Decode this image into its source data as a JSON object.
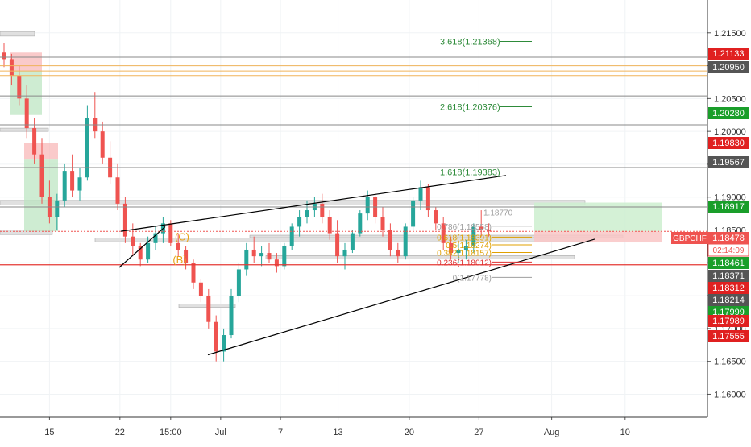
{
  "symbol": "GBPCHF",
  "price": "1.18478",
  "countdown": "02:14:09",
  "chart_data": {
    "type": "candlestick",
    "symbol": "GBPCHF",
    "ylim": [
      1.1565,
      1.22
    ],
    "y_ticks": [
      "1.21500",
      "1.21000",
      "1.20500",
      "1.20000",
      "1.19500",
      "1.19000",
      "1.18500",
      "1.18000",
      "1.17500",
      "1.17000",
      "1.16500",
      "1.16000"
    ],
    "x_ticks": [
      {
        "label": "15",
        "t": 0.6
      },
      {
        "label": "22",
        "t": 1.53
      },
      {
        "label": "15:00",
        "t": 2.2
      },
      {
        "label": "Jul",
        "t": 2.86
      },
      {
        "label": "7",
        "t": 3.65
      },
      {
        "label": "13",
        "t": 4.41
      },
      {
        "label": "20",
        "t": 5.35
      },
      {
        "label": "27",
        "t": 6.27
      },
      {
        "label": "Aug",
        "t": 7.23
      },
      {
        "label": "10",
        "t": 8.2
      }
    ],
    "price_tags": [
      {
        "label": "1.21133",
        "color": "#e02020"
      },
      {
        "label": "1.20950",
        "color": "#555555"
      },
      {
        "label": "1.20280",
        "color": "#1a9e2a"
      },
      {
        "label": "1.19830",
        "color": "#e02020"
      },
      {
        "label": "1.19567",
        "color": "#555555"
      },
      {
        "label": "1.18917",
        "color": "#1a9e2a"
      },
      {
        "label": "1.18461",
        "color": "#1a9e2a"
      },
      {
        "label": "1.18371",
        "color": "#555555"
      },
      {
        "label": "1.18312",
        "color": "#e02020"
      },
      {
        "label": "1.18214",
        "color": "#555555"
      },
      {
        "label": "1.17999",
        "color": "#1a9e2a"
      },
      {
        "label": "1.17989",
        "color": "#e02020"
      },
      {
        "label": "1.17555",
        "color": "#e02020"
      }
    ],
    "fib_extensions": [
      {
        "label": "3.618(1.21368)",
        "value": 1.21368
      },
      {
        "label": "2.618(1.20376)",
        "value": 1.20376
      },
      {
        "label": "1.618(1.19383)",
        "value": 1.19383
      }
    ],
    "fib_retracements": [
      {
        "label": "0.786(1.18558)",
        "value": 1.18558,
        "color": "#9e9e9e"
      },
      {
        "label": "0.618(1.18391)",
        "value": 1.18391,
        "color": "#e0a000"
      },
      {
        "label": "0.5(1.18274)",
        "value": 1.18274,
        "color": "#e0a000"
      },
      {
        "label": "0.382(1.18157)",
        "value": 1.18157,
        "color": "#e0a000"
      },
      {
        "label": "0.236(1.18012)",
        "value": 1.18012,
        "color": "#e03030"
      },
      {
        "label": "0(1.17778)",
        "value": 1.17778,
        "color": "#9e9e9e"
      }
    ],
    "extra_labels": [
      "1.18770"
    ],
    "wave_labels": [
      "(C)",
      "(B)"
    ],
    "candles": [
      [
        0.0,
        1.212,
        1.2135,
        1.2098,
        1.211
      ],
      [
        0.1,
        1.211,
        1.2118,
        1.207,
        1.2085
      ],
      [
        0.2,
        1.2085,
        1.21,
        1.204,
        1.205
      ],
      [
        0.3,
        1.205,
        1.207,
        1.199,
        1.2005
      ],
      [
        0.4,
        1.2005,
        1.202,
        1.195,
        1.1965
      ],
      [
        0.5,
        1.1965,
        1.199,
        1.189,
        1.19
      ],
      [
        0.6,
        1.19,
        1.1925,
        1.186,
        1.187
      ],
      [
        0.7,
        1.187,
        1.1905,
        1.185,
        1.1895
      ],
      [
        0.8,
        1.1895,
        1.195,
        1.1885,
        1.194
      ],
      [
        0.9,
        1.194,
        1.1965,
        1.19,
        1.191
      ],
      [
        1.0,
        1.191,
        1.1945,
        1.1895,
        1.193
      ],
      [
        1.1,
        1.193,
        1.204,
        1.1925,
        1.202
      ],
      [
        1.2,
        1.202,
        1.206,
        1.199,
        1.2
      ],
      [
        1.3,
        1.2,
        1.2015,
        1.195,
        1.196
      ],
      [
        1.4,
        1.196,
        1.1985,
        1.192,
        1.193
      ],
      [
        1.5,
        1.193,
        1.195,
        1.188,
        1.189
      ],
      [
        1.6,
        1.189,
        1.19,
        1.183,
        1.184
      ],
      [
        1.7,
        1.184,
        1.186,
        1.181,
        1.1825
      ],
      [
        1.8,
        1.1825,
        1.183,
        1.1795,
        1.1805
      ],
      [
        1.9,
        1.1805,
        1.184,
        1.18,
        1.183
      ],
      [
        2.0,
        1.183,
        1.1855,
        1.182,
        1.1845
      ],
      [
        2.1,
        1.1845,
        1.187,
        1.183,
        1.186
      ],
      [
        2.2,
        1.186,
        1.1865,
        1.1825,
        1.183
      ],
      [
        2.3,
        1.183,
        1.1845,
        1.181,
        1.182
      ],
      [
        2.4,
        1.182,
        1.1825,
        1.179,
        1.18
      ],
      [
        2.5,
        1.18,
        1.1805,
        1.176,
        1.177
      ],
      [
        2.6,
        1.177,
        1.1775,
        1.174,
        1.175
      ],
      [
        2.7,
        1.175,
        1.176,
        1.17,
        1.171
      ],
      [
        2.8,
        1.171,
        1.172,
        1.165,
        1.1665
      ],
      [
        2.9,
        1.1665,
        1.17,
        1.165,
        1.169
      ],
      [
        3.0,
        1.169,
        1.176,
        1.1685,
        1.175
      ],
      [
        3.1,
        1.175,
        1.18,
        1.174,
        1.179
      ],
      [
        3.2,
        1.179,
        1.183,
        1.178,
        1.182
      ],
      [
        3.3,
        1.182,
        1.184,
        1.18,
        1.181
      ],
      [
        3.4,
        1.181,
        1.1825,
        1.1795,
        1.1815
      ],
      [
        3.5,
        1.1815,
        1.183,
        1.18,
        1.1805
      ],
      [
        3.6,
        1.1805,
        1.1815,
        1.1785,
        1.1795
      ],
      [
        3.7,
        1.1795,
        1.183,
        1.179,
        1.1825
      ],
      [
        3.8,
        1.1825,
        1.186,
        1.182,
        1.1855
      ],
      [
        3.9,
        1.1855,
        1.188,
        1.184,
        1.187
      ],
      [
        4.0,
        1.187,
        1.1895,
        1.186,
        1.188
      ],
      [
        4.1,
        1.188,
        1.19,
        1.187,
        1.189
      ],
      [
        4.2,
        1.189,
        1.1905,
        1.186,
        1.187
      ],
      [
        4.3,
        1.187,
        1.188,
        1.1835,
        1.1845
      ],
      [
        4.4,
        1.1845,
        1.1865,
        1.18,
        1.181
      ],
      [
        4.5,
        1.181,
        1.183,
        1.179,
        1.182
      ],
      [
        4.6,
        1.182,
        1.185,
        1.1815,
        1.1845
      ],
      [
        4.7,
        1.1845,
        1.188,
        1.184,
        1.1875
      ],
      [
        4.8,
        1.1875,
        1.191,
        1.1865,
        1.19
      ],
      [
        4.9,
        1.19,
        1.1905,
        1.186,
        1.187
      ],
      [
        5.0,
        1.187,
        1.1885,
        1.184,
        1.185
      ],
      [
        5.1,
        1.185,
        1.186,
        1.181,
        1.182
      ],
      [
        5.2,
        1.182,
        1.183,
        1.18,
        1.181
      ],
      [
        5.3,
        1.181,
        1.186,
        1.1805,
        1.1855
      ],
      [
        5.4,
        1.1855,
        1.19,
        1.185,
        1.1895
      ],
      [
        5.5,
        1.1895,
        1.1925,
        1.188,
        1.1915
      ],
      [
        5.6,
        1.1915,
        1.192,
        1.187,
        1.188
      ],
      [
        5.7,
        1.188,
        1.1885,
        1.185,
        1.186
      ],
      [
        5.8,
        1.186,
        1.187,
        1.182,
        1.183
      ],
      [
        5.9,
        1.183,
        1.184,
        1.1805,
        1.1815
      ],
      [
        6.0,
        1.1815,
        1.183,
        1.18,
        1.182
      ],
      [
        6.1,
        1.182,
        1.1835,
        1.1805,
        1.1825
      ],
      [
        6.2,
        1.1825,
        1.186,
        1.1815,
        1.1855
      ],
      [
        6.3,
        1.1855,
        1.188,
        1.184,
        1.185
      ],
      [
        6.4,
        1.185,
        1.186,
        1.184,
        1.1848
      ]
    ]
  }
}
